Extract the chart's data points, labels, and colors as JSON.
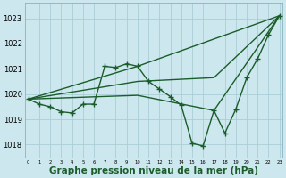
{
  "title": "Graphe pression niveau de la mer (hPa)",
  "bg_color": "#cce8ee",
  "grid_color": "#aacdd5",
  "line_color": "#1a5c2a",
  "x_ticks": [
    0,
    1,
    2,
    3,
    4,
    5,
    6,
    7,
    8,
    9,
    10,
    11,
    12,
    13,
    14,
    15,
    16,
    17,
    18,
    19,
    20,
    21,
    22,
    23
  ],
  "y_ticks": [
    1018,
    1019,
    1020,
    1021,
    1022,
    1023
  ],
  "ylim": [
    1017.5,
    1023.6
  ],
  "xlim": [
    -0.3,
    23.3
  ],
  "series": [
    {
      "x": [
        0,
        1,
        2,
        3,
        4,
        5,
        6,
        7,
        8,
        9,
        10,
        11,
        12,
        13,
        14,
        15,
        16,
        17,
        18,
        19,
        20,
        21,
        22,
        23
      ],
      "y": [
        1019.8,
        1019.6,
        1019.5,
        1019.3,
        1019.25,
        1019.6,
        1019.6,
        1021.1,
        1021.05,
        1021.2,
        1021.1,
        1020.5,
        1020.2,
        1019.9,
        1019.55,
        1018.05,
        1017.95,
        1019.35,
        1018.45,
        1019.4,
        1020.65,
        1021.4,
        1022.35,
        1023.1
      ],
      "marker": true
    },
    {
      "x": [
        0,
        10,
        23
      ],
      "y": [
        1019.8,
        1021.1,
        1023.1
      ],
      "marker": false
    },
    {
      "x": [
        0,
        10,
        17,
        23
      ],
      "y": [
        1019.8,
        1020.5,
        1020.65,
        1023.1
      ],
      "marker": false
    },
    {
      "x": [
        0,
        10,
        17,
        23
      ],
      "y": [
        1019.8,
        1019.95,
        1019.35,
        1023.1
      ],
      "marker": false
    }
  ],
  "marker_style": "+",
  "marker_size": 4,
  "linewidth": 1.0,
  "xlabel_fontsize": 7.5,
  "tick_fontsize": 6.0
}
